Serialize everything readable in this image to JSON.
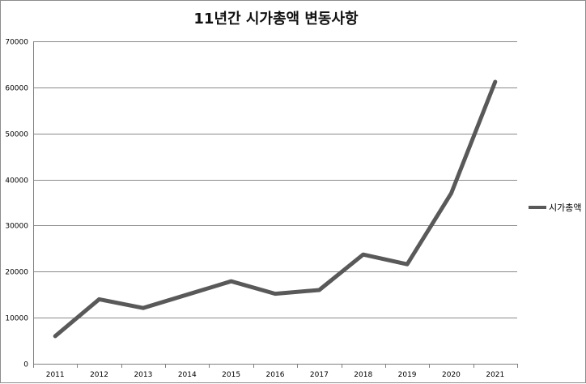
{
  "chart_data": {
    "type": "line",
    "title": "11년간 시가총액 변동사항",
    "xlabel": "",
    "ylabel": "",
    "categories": [
      "2011",
      "2012",
      "2013",
      "2014",
      "2015",
      "2016",
      "2017",
      "2018",
      "2019",
      "2020",
      "2021"
    ],
    "series": [
      {
        "name": "시가총액",
        "values": [
          6000,
          14000,
          12100,
          15000,
          17900,
          15200,
          16000,
          23700,
          21600,
          37000,
          61200
        ],
        "color": "#595959"
      }
    ],
    "ylim": [
      0,
      70000
    ],
    "yticks": [
      0,
      10000,
      20000,
      30000,
      40000,
      50000,
      60000,
      70000
    ],
    "grid": true,
    "legend": "right"
  }
}
